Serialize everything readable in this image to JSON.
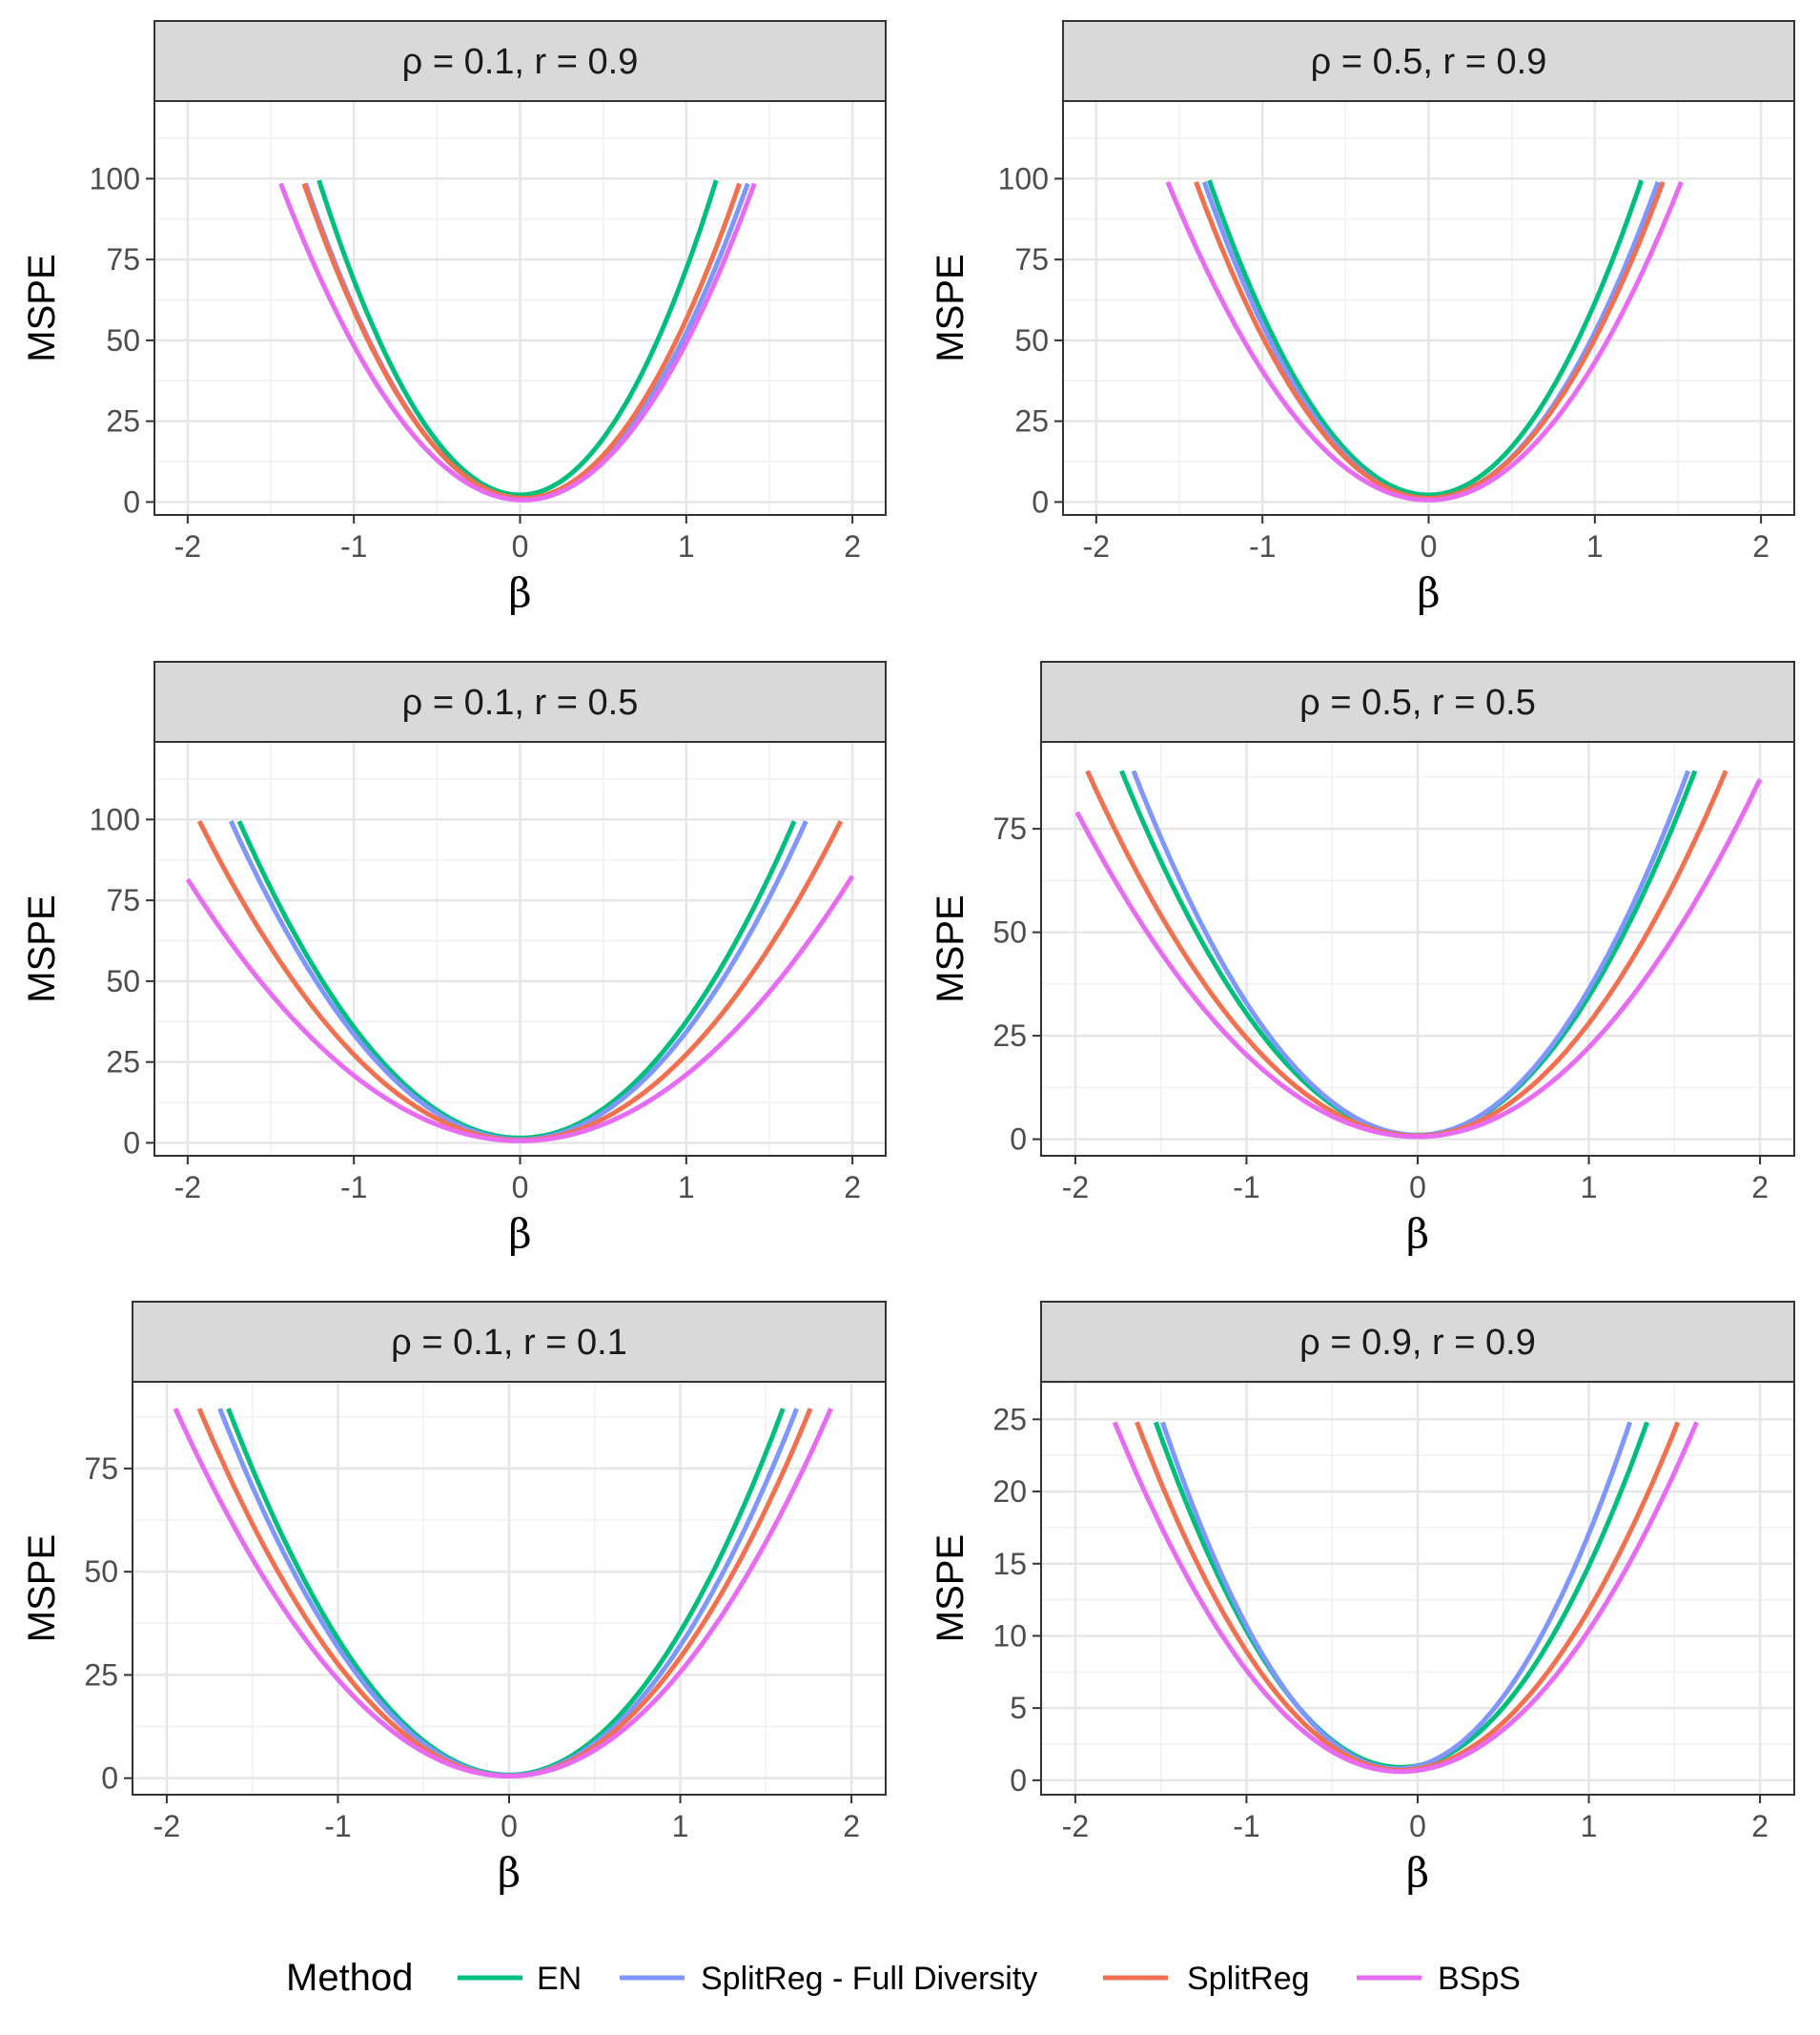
{
  "chart_data": {
    "type": "line",
    "xlabel": "β",
    "ylabel": "MSPE",
    "legend": {
      "title": "Method",
      "placement": "bottom",
      "entries": [
        {
          "name": "EN",
          "color": "#00BF7D"
        },
        {
          "name": "SplitReg - Full Diversity",
          "color": "#7F96FF"
        },
        {
          "name": "SplitReg",
          "color": "#F0704F"
        },
        {
          "name": "BSpS",
          "color": "#E76BF3"
        }
      ]
    },
    "panels": [
      {
        "title": "ρ = 0.1,  r = 0.9",
        "xlim": [
          -2.2,
          2.2
        ],
        "ylim": [
          -4,
          124
        ],
        "xticks": [
          -2,
          -1,
          0,
          1,
          2
        ],
        "xtick_labels": [
          "-2",
          "-1",
          "0",
          "1",
          "2"
        ],
        "yticks": [
          0,
          25,
          50,
          75,
          100
        ],
        "ytick_labels": [
          "0",
          "25",
          "50",
          "75",
          "100"
        ],
        "series": [
          {
            "name": "EN",
            "xmin": -1.21,
            "xmax": 1.18,
            "x0": 0.0,
            "y0": 2.2,
            "ya": 99.5,
            "yb": 99.5
          },
          {
            "name": "SplitReg - Full Diversity",
            "xmin": -1.29,
            "xmax": 1.37,
            "x0": 0.02,
            "y0": 1.0,
            "ya": 98.5,
            "yb": 98.5
          },
          {
            "name": "SplitReg",
            "xmin": -1.3,
            "xmax": 1.32,
            "x0": 0.02,
            "y0": 1.2,
            "ya": 98.5,
            "yb": 98.5
          },
          {
            "name": "BSpS",
            "xmin": -1.44,
            "xmax": 1.41,
            "x0": 0.02,
            "y0": 0.6,
            "ya": 98.5,
            "yb": 98.5
          }
        ]
      },
      {
        "title": "ρ = 0.5,  r = 0.9",
        "xlim": [
          -2.2,
          2.2
        ],
        "ylim": [
          -4,
          124
        ],
        "xticks": [
          -2,
          -1,
          0,
          1,
          2
        ],
        "xtick_labels": [
          "-2",
          "-1",
          "0",
          "1",
          "2"
        ],
        "yticks": [
          0,
          25,
          50,
          75,
          100
        ],
        "ytick_labels": [
          "0",
          "25",
          "50",
          "75",
          "100"
        ],
        "series": [
          {
            "name": "EN",
            "xmin": -1.32,
            "xmax": 1.28,
            "x0": 0.0,
            "y0": 2.2,
            "ya": 99.5,
            "yb": 99.5
          },
          {
            "name": "SplitReg - Full Diversity",
            "xmin": -1.35,
            "xmax": 1.38,
            "x0": 0.0,
            "y0": 1.0,
            "ya": 99.0,
            "yb": 99.0
          },
          {
            "name": "SplitReg",
            "xmin": -1.4,
            "xmax": 1.41,
            "x0": 0.0,
            "y0": 1.2,
            "ya": 99.0,
            "yb": 99.0
          },
          {
            "name": "BSpS",
            "xmin": -1.57,
            "xmax": 1.52,
            "x0": 0.0,
            "y0": 0.6,
            "ya": 99.0,
            "yb": 99.0
          }
        ]
      },
      {
        "title": "ρ = 0.1,  r = 0.5",
        "xlim": [
          -2.2,
          2.2
        ],
        "ylim": [
          -4,
          124
        ],
        "xticks": [
          -2,
          -1,
          0,
          1,
          2
        ],
        "xtick_labels": [
          "-2",
          "-1",
          "0",
          "1",
          "2"
        ],
        "yticks": [
          0,
          25,
          50,
          75,
          100
        ],
        "ytick_labels": [
          "0",
          "25",
          "50",
          "75",
          "100"
        ],
        "series": [
          {
            "name": "EN",
            "xmin": -1.69,
            "xmax": 1.65,
            "x0": 0.0,
            "y0": 1.5,
            "ya": 99.5,
            "yb": 99.5
          },
          {
            "name": "SplitReg - Full Diversity",
            "xmin": -1.74,
            "xmax": 1.72,
            "x0": 0.0,
            "y0": 1.0,
            "ya": 99.5,
            "yb": 99.5
          },
          {
            "name": "SplitReg",
            "xmin": -1.93,
            "xmax": 1.93,
            "x0": 0.0,
            "y0": 0.8,
            "ya": 99.5,
            "yb": 99.5
          },
          {
            "name": "BSpS",
            "xmin": -2.0,
            "xmax": 2.0,
            "x0": 0.0,
            "y0": 0.6,
            "ya": 81.5,
            "yb": 82.5
          }
        ]
      },
      {
        "title": "ρ = 0.5,  r = 0.5",
        "xlim": [
          -2.2,
          2.2
        ],
        "ylim": [
          -4,
          96
        ],
        "xticks": [
          -2,
          -1,
          0,
          1,
          2
        ],
        "xtick_labels": [
          "-2",
          "-1",
          "0",
          "1",
          "2"
        ],
        "yticks": [
          0,
          25,
          50,
          75
        ],
        "ytick_labels": [
          "0",
          "25",
          "50",
          "75"
        ],
        "series": [
          {
            "name": "EN",
            "xmin": -1.73,
            "xmax": 1.62,
            "x0": 0.0,
            "y0": 1.0,
            "ya": 89.0,
            "yb": 89.0
          },
          {
            "name": "SplitReg - Full Diversity",
            "xmin": -1.66,
            "xmax": 1.58,
            "x0": 0.0,
            "y0": 1.0,
            "ya": 89.0,
            "yb": 89.0
          },
          {
            "name": "SplitReg",
            "xmin": -1.93,
            "xmax": 1.8,
            "x0": 0.0,
            "y0": 0.8,
            "ya": 89.0,
            "yb": 89.0
          },
          {
            "name": "BSpS",
            "xmin": -1.99,
            "xmax": 2.0,
            "x0": 0.0,
            "y0": 0.6,
            "ya": 79.0,
            "yb": 87.0
          }
        ]
      },
      {
        "title": "ρ = 0.1,  r = 0.1",
        "xlim": [
          -2.2,
          2.2
        ],
        "ylim": [
          -4,
          96
        ],
        "xticks": [
          -2,
          -1,
          0,
          1,
          2
        ],
        "xtick_labels": [
          "-2",
          "-1",
          "0",
          "1",
          "2"
        ],
        "yticks": [
          0,
          25,
          50,
          75
        ],
        "ytick_labels": [
          "0",
          "25",
          "50",
          "75"
        ],
        "series": [
          {
            "name": "EN",
            "xmin": -1.64,
            "xmax": 1.6,
            "x0": 0.0,
            "y0": 0.8,
            "ya": 89.5,
            "yb": 89.5
          },
          {
            "name": "SplitReg - Full Diversity",
            "xmin": -1.69,
            "xmax": 1.68,
            "x0": 0.0,
            "y0": 0.6,
            "ya": 89.5,
            "yb": 89.5
          },
          {
            "name": "SplitReg",
            "xmin": -1.81,
            "xmax": 1.76,
            "x0": 0.0,
            "y0": 0.5,
            "ya": 89.5,
            "yb": 89.5
          },
          {
            "name": "BSpS",
            "xmin": -1.95,
            "xmax": 1.88,
            "x0": 0.0,
            "y0": 0.5,
            "ya": 89.5,
            "yb": 89.5
          }
        ]
      },
      {
        "title": "ρ = 0.9,  r = 0.9",
        "xlim": [
          -2.2,
          2.2
        ],
        "ylim": [
          -1,
          27.6
        ],
        "xticks": [
          -2,
          -1,
          0,
          1,
          2
        ],
        "xtick_labels": [
          "-2",
          "-1",
          "0",
          "1",
          "2"
        ],
        "yticks": [
          0,
          5,
          10,
          15,
          20,
          25
        ],
        "ytick_labels": [
          "0",
          "5",
          "10",
          "15",
          "20",
          "25"
        ],
        "series": [
          {
            "name": "EN",
            "xmin": -1.53,
            "xmax": 1.34,
            "x0": -0.1,
            "y0": 0.9,
            "ya": 24.8,
            "yb": 24.8
          },
          {
            "name": "SplitReg - Full Diversity",
            "xmin": -1.49,
            "xmax": 1.24,
            "x0": -0.12,
            "y0": 0.8,
            "ya": 24.8,
            "yb": 24.8
          },
          {
            "name": "SplitReg",
            "xmin": -1.64,
            "xmax": 1.52,
            "x0": -0.1,
            "y0": 0.7,
            "ya": 24.8,
            "yb": 24.8
          },
          {
            "name": "BSpS",
            "xmin": -1.77,
            "xmax": 1.63,
            "x0": -0.1,
            "y0": 0.6,
            "ya": 24.8,
            "yb": 24.8
          }
        ]
      }
    ]
  }
}
